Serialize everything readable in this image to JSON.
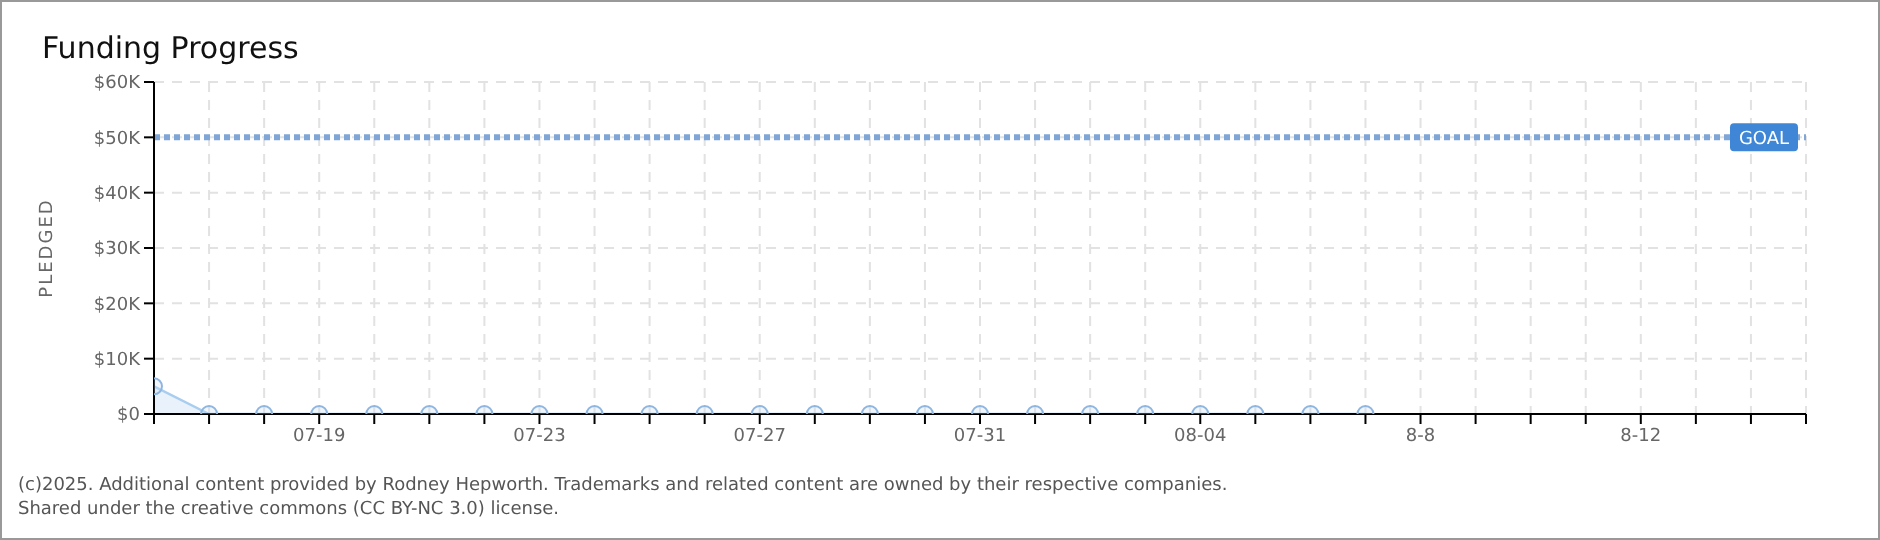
{
  "chart_data": {
    "type": "area",
    "title": "Funding Progress",
    "ylabel": "PLEDGED",
    "x": [
      "2025-07-16",
      "2025-07-17",
      "2025-07-18",
      "2025-07-19",
      "2025-07-20",
      "2025-07-21",
      "2025-07-22",
      "2025-07-23",
      "2025-07-24",
      "2025-07-25",
      "2025-07-26",
      "2025-07-27",
      "2025-07-28",
      "2025-07-29",
      "2025-07-30",
      "2025-07-31",
      "2025-08-01",
      "2025-08-02",
      "2025-08-03",
      "2025-08-04",
      "2025-08-05",
      "2025-08-06",
      "2025-08-07"
    ],
    "series": [
      {
        "color": "#a9cdf0",
        "values": [
          5000,
          0,
          0,
          0,
          0,
          0,
          0,
          0,
          0,
          0,
          0,
          0,
          0,
          0,
          0,
          0,
          0,
          0,
          0,
          0,
          0,
          0,
          0
        ]
      }
    ],
    "xlim": [
      "2025-07-16",
      "2025-08-15"
    ],
    "xticks": [
      {
        "value": "2025-07-16",
        "label": null
      },
      {
        "value": "2025-07-17",
        "label": null
      },
      {
        "value": "2025-07-18",
        "label": null
      },
      {
        "value": "2025-07-19",
        "label": "07-19"
      },
      {
        "value": "2025-07-20",
        "label": null
      },
      {
        "value": "2025-07-21",
        "label": null
      },
      {
        "value": "2025-07-22",
        "label": null
      },
      {
        "value": "2025-07-23",
        "label": "07-23"
      },
      {
        "value": "2025-07-24",
        "label": null
      },
      {
        "value": "2025-07-25",
        "label": null
      },
      {
        "value": "2025-07-26",
        "label": null
      },
      {
        "value": "2025-07-27",
        "label": "07-27"
      },
      {
        "value": "2025-07-28",
        "label": null
      },
      {
        "value": "2025-07-29",
        "label": null
      },
      {
        "value": "2025-07-30",
        "label": null
      },
      {
        "value": "2025-07-31",
        "label": "07-31"
      },
      {
        "value": "2025-08-01",
        "label": null
      },
      {
        "value": "2025-08-02",
        "label": null
      },
      {
        "value": "2025-08-03",
        "label": null
      },
      {
        "value": "2025-08-04",
        "label": "08-04"
      },
      {
        "value": "2025-08-05",
        "label": null
      },
      {
        "value": "2025-08-06",
        "label": null
      },
      {
        "value": "2025-08-07",
        "label": null
      },
      {
        "value": "2025-08-08",
        "label": "8-8"
      },
      {
        "value": "2025-08-09",
        "label": null
      },
      {
        "value": "2025-08-10",
        "label": null
      },
      {
        "value": "2025-08-11",
        "label": null
      },
      {
        "value": "2025-08-12",
        "label": "8-12"
      },
      {
        "value": "2025-08-13",
        "label": null
      },
      {
        "value": "2025-08-14",
        "label": null
      },
      {
        "value": "2025-08-15",
        "label": null
      }
    ],
    "ylim": [
      0,
      60000
    ],
    "yticks": [
      {
        "value": 0,
        "label": "$0"
      },
      {
        "value": 10000,
        "label": "$10K"
      },
      {
        "value": 20000,
        "label": "$20K"
      },
      {
        "value": 30000,
        "label": "$30K"
      },
      {
        "value": 40000,
        "label": "$40K"
      },
      {
        "value": 50000,
        "label": "$50K"
      },
      {
        "value": 60000,
        "label": "$60K"
      }
    ],
    "ref_lines": [
      {
        "axis": "y",
        "value": 50000,
        "label": "GOAL",
        "color": "#7fa6d6",
        "line_style": "dotted"
      }
    ],
    "grid": true,
    "marker": "circle",
    "annotations": [
      "(c)2025. Additional content provided by Rodney Hepworth. Trademarks and related content are owned by their respective companies.",
      "Shared under the creative commons (CC BY-NC 3.0) license."
    ]
  }
}
